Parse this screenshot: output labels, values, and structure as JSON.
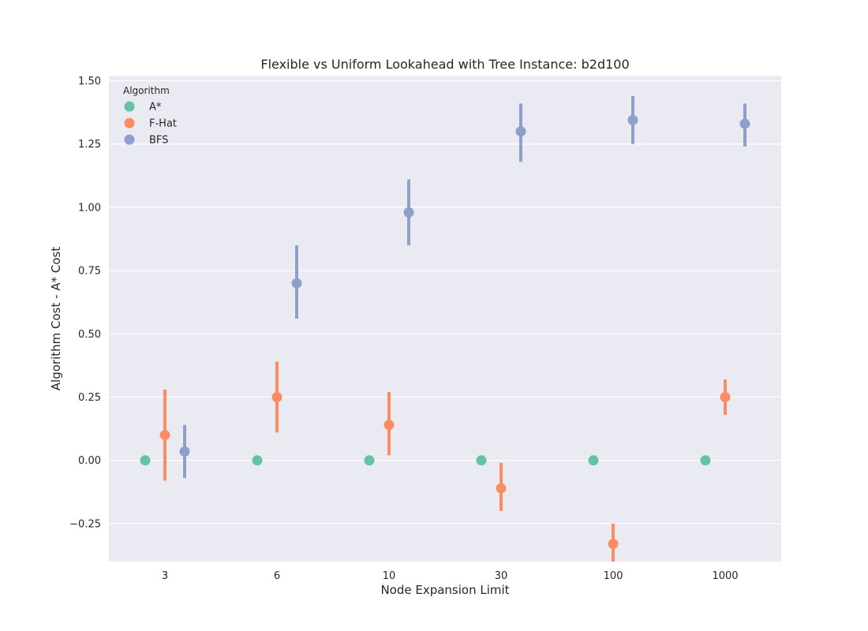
{
  "chart_data": {
    "type": "point",
    "title": "Flexible vs Uniform Lookahead with Tree Instance: b2d100",
    "xlabel": "Node Expansion Limit",
    "ylabel": "Algorithm Cost - A* Cost",
    "categories": [
      "3",
      "6",
      "10",
      "30",
      "100",
      "1000"
    ],
    "ylim": [
      -0.4,
      1.52
    ],
    "yticks": [
      -0.25,
      0.0,
      0.25,
      0.5,
      0.75,
      1.0,
      1.25,
      1.5
    ],
    "ytick_labels": [
      "−0.25",
      "0.00",
      "0.25",
      "0.50",
      "0.75",
      "1.00",
      "1.25",
      "1.50"
    ],
    "grid": true,
    "legend": {
      "title": "Algorithm",
      "position": "top-left"
    },
    "series": [
      {
        "name": "A*",
        "color": "#66c2a5",
        "values": [
          0.0,
          0.0,
          0.0,
          0.0,
          0.0,
          0.0
        ],
        "err_low": [
          0.0,
          0.0,
          0.0,
          0.0,
          0.0,
          0.0
        ],
        "err_high": [
          0.0,
          0.0,
          0.0,
          0.0,
          0.0,
          0.0
        ]
      },
      {
        "name": "F-Hat",
        "color": "#fc8d62",
        "values": [
          0.1,
          0.25,
          0.14,
          -0.11,
          -0.33,
          0.25
        ],
        "err_low": [
          -0.08,
          0.11,
          0.02,
          -0.2,
          -0.4,
          0.18
        ],
        "err_high": [
          0.28,
          0.39,
          0.27,
          -0.01,
          -0.25,
          0.32
        ]
      },
      {
        "name": "BFS",
        "color": "#8da0cb",
        "values": [
          0.035,
          0.7,
          0.98,
          1.3,
          1.345,
          1.33
        ],
        "err_low": [
          -0.07,
          0.56,
          0.85,
          1.18,
          1.25,
          1.24
        ],
        "err_high": [
          0.14,
          0.85,
          1.11,
          1.41,
          1.44,
          1.41
        ]
      }
    ]
  }
}
